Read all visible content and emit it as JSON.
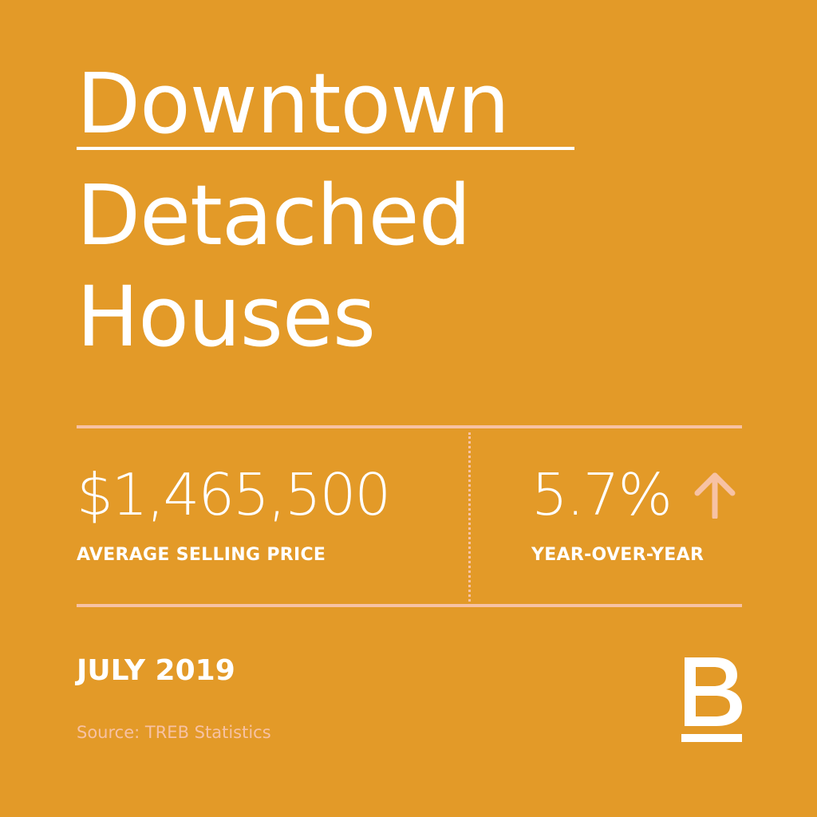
{
  "title": {
    "line1": "Downtown",
    "line2": "Detached",
    "line3": "Houses"
  },
  "stats": {
    "price": {
      "value": "$1,465,500",
      "label": "AVERAGE SELLING PRICE"
    },
    "change": {
      "value": "5.7%",
      "label": "YEAR-OVER-YEAR",
      "direction_icon": "arrow-up-icon"
    }
  },
  "date": "JULY 2019",
  "source": "Source: TREB Statistics",
  "logo": {
    "letter": "B",
    "icon": "brand-b-logo"
  },
  "colors": {
    "background": "#E39A28",
    "text": "#FFFFFF",
    "accent": "#F7C2A4"
  }
}
